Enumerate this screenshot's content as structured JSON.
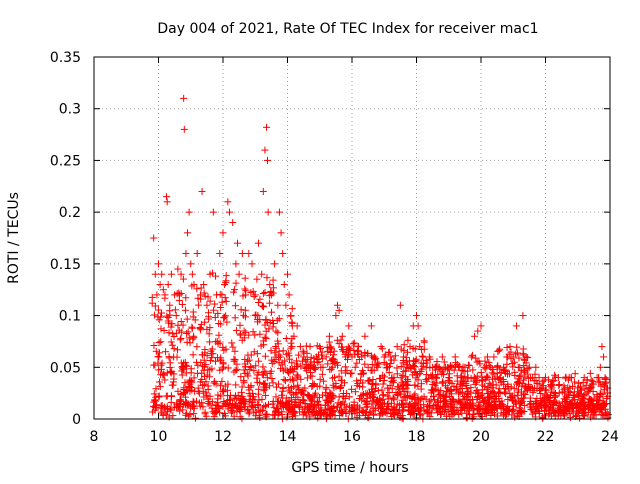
{
  "chart_data": {
    "type": "scatter",
    "title": "Day 004 of 2021, Rate Of TEC Index for receiver mac1",
    "xlabel": "GPS time / hours",
    "ylabel": "ROTI / TECUs",
    "xlim": [
      8,
      24
    ],
    "ylim": [
      0,
      0.35
    ],
    "x_ticks": [
      8,
      10,
      12,
      14,
      16,
      18,
      20,
      22,
      24
    ],
    "y_ticks": [
      0,
      0.05,
      0.1,
      0.15,
      0.2,
      0.25,
      0.3,
      0.35
    ],
    "x_tick_labels": [
      "8",
      "10",
      "12",
      "14",
      "16",
      "18",
      "20",
      "22",
      "24"
    ],
    "y_tick_labels": [
      "0",
      "0.05",
      "0.1",
      "0.15",
      "0.2",
      "0.25",
      "0.3",
      "0.35"
    ],
    "grid": true,
    "legend": "none",
    "marker": "+",
    "series": [
      {
        "name": "mac1",
        "color": "#ff0000",
        "points": [
          [
            9.85,
            0.175
          ],
          [
            9.9,
            0.14
          ],
          [
            9.95,
            0.12
          ],
          [
            10.0,
            0.15
          ],
          [
            10.05,
            0.13
          ],
          [
            10.1,
            0.14
          ],
          [
            10.15,
            0.125
          ],
          [
            10.2,
            0.12
          ],
          [
            10.25,
            0.215
          ],
          [
            10.27,
            0.21
          ],
          [
            10.3,
            0.13
          ],
          [
            10.35,
            0.11
          ],
          [
            10.4,
            0.14
          ],
          [
            10.5,
            0.12
          ],
          [
            10.55,
            0.1
          ],
          [
            10.6,
            0.145
          ],
          [
            10.65,
            0.12
          ],
          [
            10.7,
            0.14
          ],
          [
            10.78,
            0.31
          ],
          [
            10.8,
            0.28
          ],
          [
            10.85,
            0.16
          ],
          [
            10.9,
            0.18
          ],
          [
            10.95,
            0.2
          ],
          [
            11.0,
            0.15
          ],
          [
            11.05,
            0.14
          ],
          [
            11.1,
            0.13
          ],
          [
            11.2,
            0.16
          ],
          [
            11.3,
            0.12
          ],
          [
            11.35,
            0.22
          ],
          [
            11.4,
            0.13
          ],
          [
            11.5,
            0.11
          ],
          [
            11.6,
            0.14
          ],
          [
            11.7,
            0.2
          ],
          [
            11.8,
            0.12
          ],
          [
            11.9,
            0.16
          ],
          [
            12.0,
            0.18
          ],
          [
            12.05,
            0.13
          ],
          [
            12.15,
            0.21
          ],
          [
            12.2,
            0.2
          ],
          [
            12.3,
            0.19
          ],
          [
            12.4,
            0.15
          ],
          [
            12.45,
            0.17
          ],
          [
            12.5,
            0.14
          ],
          [
            12.6,
            0.16
          ],
          [
            12.7,
            0.12
          ],
          [
            12.8,
            0.16
          ],
          [
            12.9,
            0.15
          ],
          [
            13.0,
            0.12
          ],
          [
            13.1,
            0.17
          ],
          [
            13.2,
            0.14
          ],
          [
            13.25,
            0.22
          ],
          [
            13.3,
            0.26
          ],
          [
            13.35,
            0.282
          ],
          [
            13.38,
            0.25
          ],
          [
            13.4,
            0.2
          ],
          [
            13.45,
            0.13
          ],
          [
            13.5,
            0.12
          ],
          [
            13.6,
            0.15
          ],
          [
            13.7,
            0.11
          ],
          [
            13.75,
            0.2
          ],
          [
            13.8,
            0.18
          ],
          [
            13.85,
            0.16
          ],
          [
            13.9,
            0.13
          ],
          [
            13.95,
            0.11
          ],
          [
            14.0,
            0.14
          ],
          [
            14.05,
            0.12
          ],
          [
            14.1,
            0.1
          ],
          [
            14.15,
            0.09
          ],
          [
            14.2,
            0.08
          ],
          [
            14.3,
            0.09
          ],
          [
            14.4,
            0.07
          ],
          [
            14.5,
            0.06
          ],
          [
            14.6,
            0.05
          ],
          [
            14.7,
            0.07
          ],
          [
            14.8,
            0.05
          ],
          [
            14.9,
            0.06
          ],
          [
            15.0,
            0.07
          ],
          [
            15.1,
            0.05
          ],
          [
            15.2,
            0.06
          ],
          [
            15.3,
            0.08
          ],
          [
            15.4,
            0.05
          ],
          [
            15.5,
            0.1
          ],
          [
            15.55,
            0.11
          ],
          [
            15.6,
            0.105
          ],
          [
            15.7,
            0.08
          ],
          [
            15.8,
            0.06
          ],
          [
            15.9,
            0.09
          ],
          [
            16.0,
            0.06
          ],
          [
            16.1,
            0.05
          ],
          [
            16.2,
            0.07
          ],
          [
            16.3,
            0.06
          ],
          [
            16.4,
            0.08
          ],
          [
            16.5,
            0.05
          ],
          [
            16.6,
            0.09
          ],
          [
            16.7,
            0.06
          ],
          [
            16.8,
            0.05
          ],
          [
            16.9,
            0.07
          ],
          [
            17.0,
            0.06
          ],
          [
            17.1,
            0.05
          ],
          [
            17.2,
            0.06
          ],
          [
            17.3,
            0.04
          ],
          [
            17.4,
            0.07
          ],
          [
            17.5,
            0.11
          ],
          [
            17.6,
            0.06
          ],
          [
            17.7,
            0.05
          ],
          [
            17.8,
            0.07
          ],
          [
            17.9,
            0.09
          ],
          [
            18.0,
            0.1
          ],
          [
            18.05,
            0.09
          ],
          [
            18.1,
            0.07
          ],
          [
            18.2,
            0.06
          ],
          [
            18.3,
            0.05
          ],
          [
            18.4,
            0.06
          ],
          [
            18.5,
            0.05
          ],
          [
            18.6,
            0.04
          ],
          [
            18.7,
            0.05
          ],
          [
            18.8,
            0.06
          ],
          [
            18.9,
            0.05
          ],
          [
            19.0,
            0.04
          ],
          [
            19.1,
            0.05
          ],
          [
            19.2,
            0.06
          ],
          [
            19.3,
            0.05
          ],
          [
            19.4,
            0.04
          ],
          [
            19.5,
            0.05
          ],
          [
            19.6,
            0.04
          ],
          [
            19.7,
            0.06
          ],
          [
            19.8,
            0.08
          ],
          [
            19.9,
            0.085
          ],
          [
            20.0,
            0.09
          ],
          [
            20.1,
            0.05
          ],
          [
            20.2,
            0.06
          ],
          [
            20.3,
            0.05
          ],
          [
            20.4,
            0.06
          ],
          [
            20.5,
            0.05
          ],
          [
            20.6,
            0.04
          ],
          [
            20.7,
            0.05
          ],
          [
            20.8,
            0.06
          ],
          [
            20.9,
            0.07
          ],
          [
            21.0,
            0.06
          ],
          [
            21.1,
            0.09
          ],
          [
            21.2,
            0.05
          ],
          [
            21.3,
            0.1
          ],
          [
            21.4,
            0.06
          ],
          [
            21.5,
            0.05
          ],
          [
            21.6,
            0.04
          ],
          [
            21.7,
            0.05
          ],
          [
            21.8,
            0.04
          ],
          [
            21.9,
            0.03
          ],
          [
            22.0,
            0.04
          ],
          [
            22.2,
            0.03
          ],
          [
            22.4,
            0.04
          ],
          [
            22.6,
            0.03
          ],
          [
            22.8,
            0.04
          ],
          [
            23.0,
            0.03
          ],
          [
            23.2,
            0.04
          ],
          [
            23.4,
            0.03
          ],
          [
            23.6,
            0.04
          ],
          [
            23.7,
            0.05
          ],
          [
            23.75,
            0.07
          ],
          [
            23.8,
            0.06
          ],
          [
            23.85,
            0.04
          ],
          [
            23.9,
            0.03
          ]
        ]
      }
    ]
  }
}
